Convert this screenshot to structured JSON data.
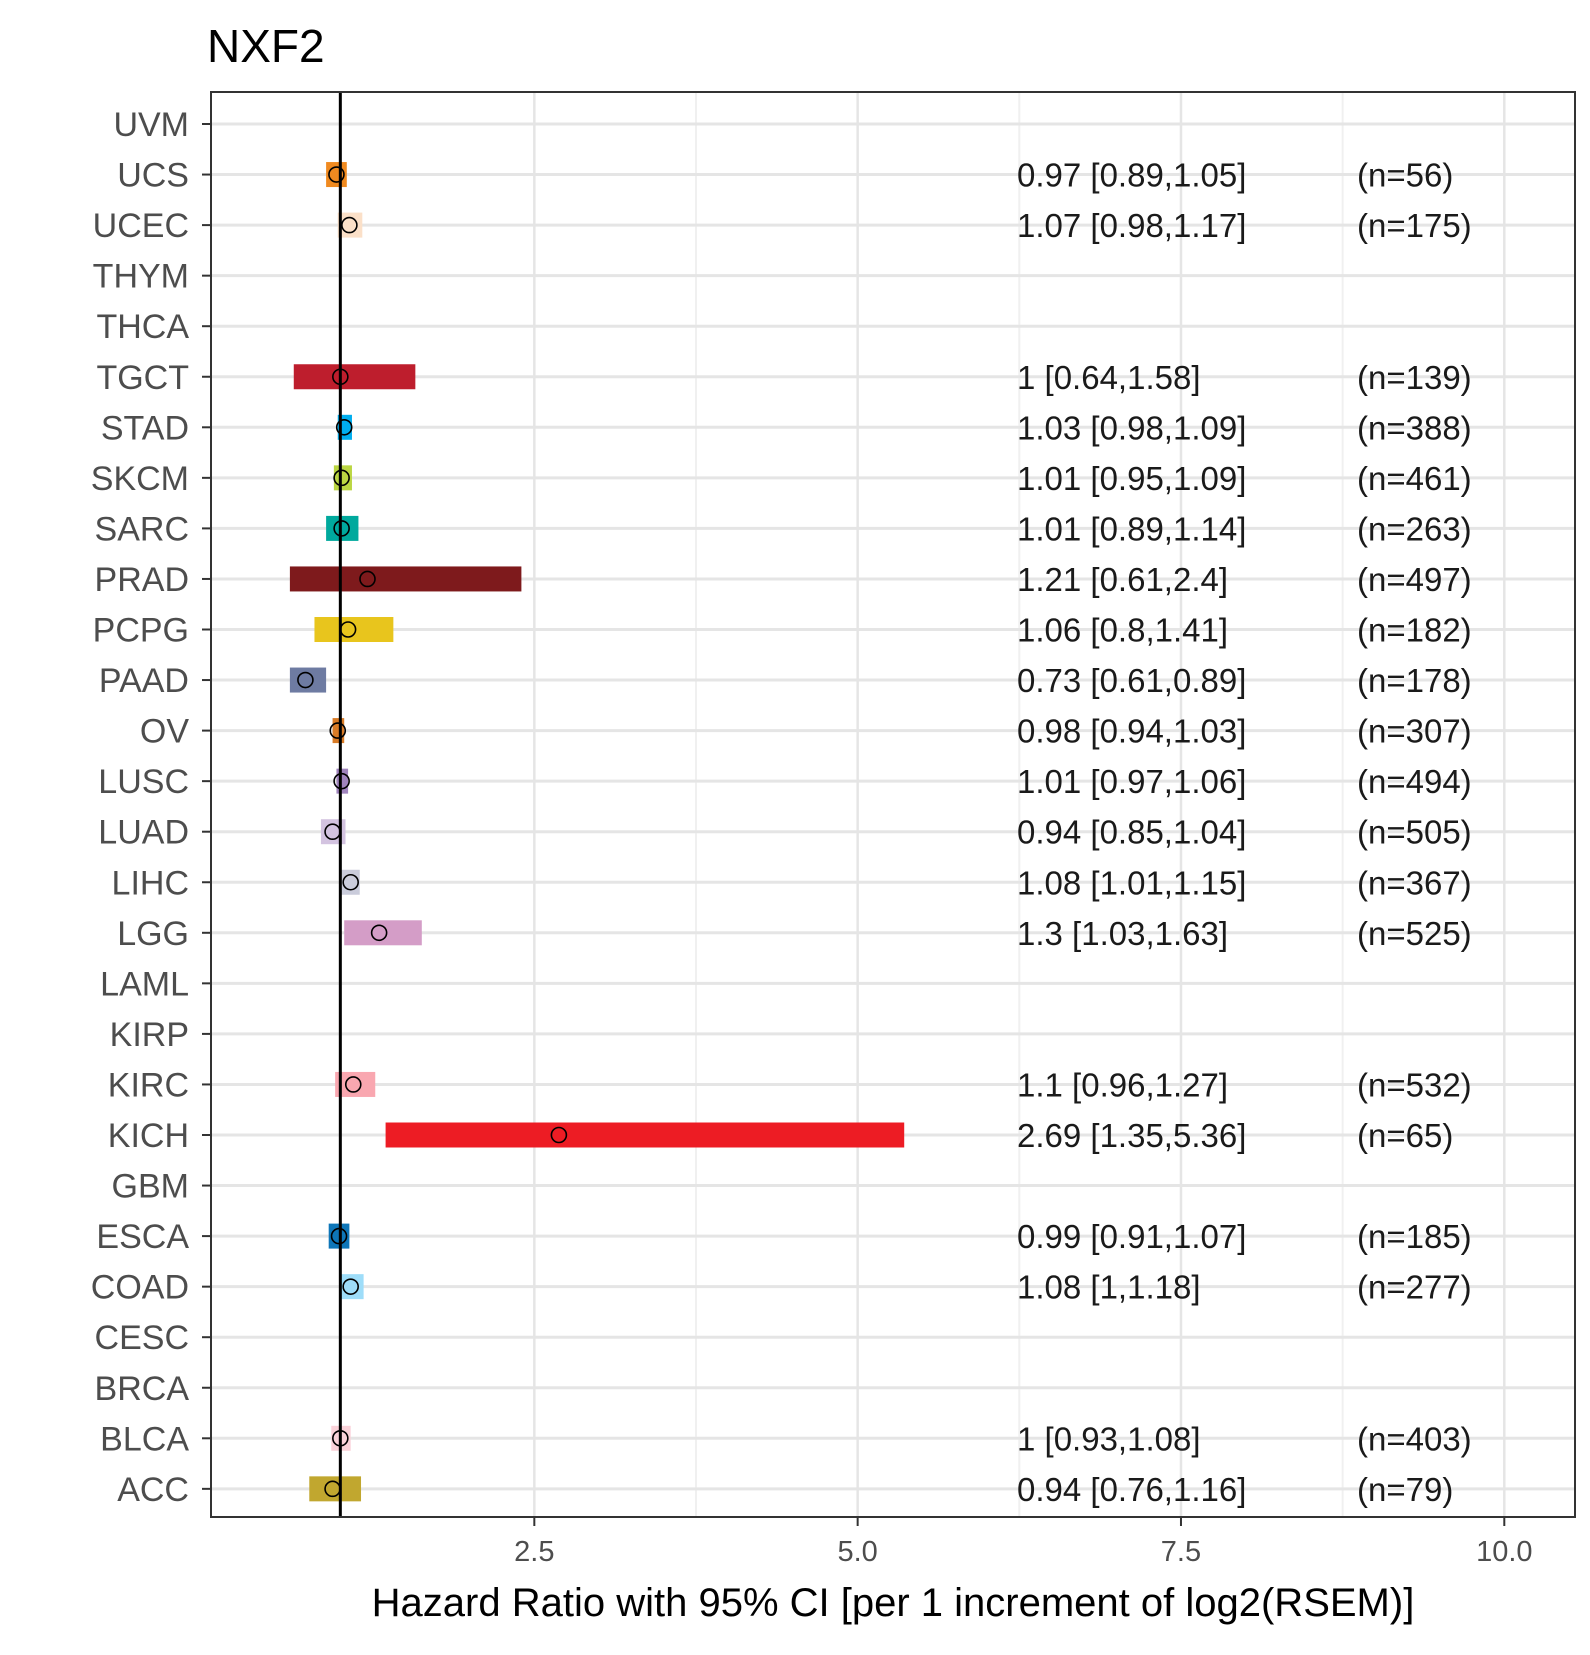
{
  "chart_data": {
    "type": "forest",
    "title": "NXF2",
    "xlabel": "Hazard Ratio with 95% CI [per 1 increment of log2(RSEM)]",
    "ylabel": "",
    "xlim": [
      0.0,
      10.6
    ],
    "reference_line": 1,
    "x_ticks": [
      2.5,
      5.0,
      7.5,
      10.0
    ],
    "x_tick_labels": [
      "2.5",
      "5.0",
      "7.5",
      "10.0"
    ],
    "x_minor_gridlines": [
      3.75,
      6.25,
      8.75
    ],
    "grid": true,
    "categories": [
      "UVM",
      "UCS",
      "UCEC",
      "THYM",
      "THCA",
      "TGCT",
      "STAD",
      "SKCM",
      "SARC",
      "PRAD",
      "PCPG",
      "PAAD",
      "OV",
      "LUSC",
      "LUAD",
      "LIHC",
      "LGG",
      "LAML",
      "KIRP",
      "KIRC",
      "KICH",
      "GBM",
      "ESCA",
      "COAD",
      "CESC",
      "BRCA",
      "BLCA",
      "ACC"
    ],
    "rows": [
      {
        "cancer": "UVM",
        "hr": null,
        "lower": null,
        "upper": null,
        "color": null,
        "label": "",
        "n": ""
      },
      {
        "cancer": "UCS",
        "hr": 0.97,
        "lower": 0.89,
        "upper": 1.05,
        "color": "#F08A20",
        "label": "0.97 [0.89,1.05]",
        "n": "(n=56)"
      },
      {
        "cancer": "UCEC",
        "hr": 1.07,
        "lower": 0.98,
        "upper": 1.17,
        "color": "#FBE0C8",
        "label": "1.07 [0.98,1.17]",
        "n": "(n=175)"
      },
      {
        "cancer": "THYM",
        "hr": null,
        "lower": null,
        "upper": null,
        "color": null,
        "label": "",
        "n": ""
      },
      {
        "cancer": "THCA",
        "hr": null,
        "lower": null,
        "upper": null,
        "color": null,
        "label": "",
        "n": ""
      },
      {
        "cancer": "TGCT",
        "hr": 1.0,
        "lower": 0.64,
        "upper": 1.58,
        "color": "#BE1E2D",
        "label": "1 [0.64,1.58]",
        "n": "(n=139)"
      },
      {
        "cancer": "STAD",
        "hr": 1.03,
        "lower": 0.98,
        "upper": 1.09,
        "color": "#00AEEF",
        "label": "1.03 [0.98,1.09]",
        "n": "(n=388)"
      },
      {
        "cancer": "SKCM",
        "hr": 1.01,
        "lower": 0.95,
        "upper": 1.09,
        "color": "#BBD642",
        "label": "1.01 [0.95,1.09]",
        "n": "(n=461)"
      },
      {
        "cancer": "SARC",
        "hr": 1.01,
        "lower": 0.89,
        "upper": 1.14,
        "color": "#00A99D",
        "label": "1.01 [0.89,1.14]",
        "n": "(n=263)"
      },
      {
        "cancer": "PRAD",
        "hr": 1.21,
        "lower": 0.61,
        "upper": 2.4,
        "color": "#7E1A1C",
        "label": "1.21 [0.61,2.4]",
        "n": "(n=497)"
      },
      {
        "cancer": "PCPG",
        "hr": 1.06,
        "lower": 0.8,
        "upper": 1.41,
        "color": "#E8C51D",
        "label": "1.06 [0.8,1.41]",
        "n": "(n=182)"
      },
      {
        "cancer": "PAAD",
        "hr": 0.73,
        "lower": 0.61,
        "upper": 0.89,
        "color": "#6E7BA2",
        "label": "0.73 [0.61,0.89]",
        "n": "(n=178)"
      },
      {
        "cancer": "OV",
        "hr": 0.98,
        "lower": 0.94,
        "upper": 1.03,
        "color": "#D97C27",
        "label": "0.98 [0.94,1.03]",
        "n": "(n=307)"
      },
      {
        "cancer": "LUSC",
        "hr": 1.01,
        "lower": 0.97,
        "upper": 1.06,
        "color": "#A084BD",
        "label": "1.01 [0.97,1.06]",
        "n": "(n=494)"
      },
      {
        "cancer": "LUAD",
        "hr": 0.94,
        "lower": 0.85,
        "upper": 1.04,
        "color": "#D3C3E0",
        "label": "0.94 [0.85,1.04]",
        "n": "(n=505)"
      },
      {
        "cancer": "LIHC",
        "hr": 1.08,
        "lower": 1.01,
        "upper": 1.15,
        "color": "#CACCDB",
        "label": "1.08 [1.01,1.15]",
        "n": "(n=367)"
      },
      {
        "cancer": "LGG",
        "hr": 1.3,
        "lower": 1.03,
        "upper": 1.63,
        "color": "#D49DC7",
        "label": "1.3 [1.03,1.63]",
        "n": "(n=525)"
      },
      {
        "cancer": "LAML",
        "hr": null,
        "lower": null,
        "upper": null,
        "color": null,
        "label": "",
        "n": ""
      },
      {
        "cancer": "KIRP",
        "hr": null,
        "lower": null,
        "upper": null,
        "color": null,
        "label": "",
        "n": ""
      },
      {
        "cancer": "KIRC",
        "hr": 1.1,
        "lower": 0.96,
        "upper": 1.27,
        "color": "#F9A7B0",
        "label": "1.1 [0.96,1.27]",
        "n": "(n=532)"
      },
      {
        "cancer": "KICH",
        "hr": 2.69,
        "lower": 1.35,
        "upper": 5.36,
        "color": "#ED1C24",
        "label": "2.69 [1.35,5.36]",
        "n": "(n=65)"
      },
      {
        "cancer": "GBM",
        "hr": null,
        "lower": null,
        "upper": null,
        "color": null,
        "label": "",
        "n": ""
      },
      {
        "cancer": "ESCA",
        "hr": 0.99,
        "lower": 0.91,
        "upper": 1.07,
        "color": "#0E76B8",
        "label": "0.99 [0.91,1.07]",
        "n": "(n=185)"
      },
      {
        "cancer": "COAD",
        "hr": 1.08,
        "lower": 1.0,
        "upper": 1.18,
        "color": "#9EDDF9",
        "label": "1.08 [1,1.18]",
        "n": "(n=277)"
      },
      {
        "cancer": "CESC",
        "hr": null,
        "lower": null,
        "upper": null,
        "color": null,
        "label": "",
        "n": ""
      },
      {
        "cancer": "BRCA",
        "hr": null,
        "lower": null,
        "upper": null,
        "color": null,
        "label": "",
        "n": ""
      },
      {
        "cancer": "BLCA",
        "hr": 1.0,
        "lower": 0.93,
        "upper": 1.08,
        "color": "#FAD2D9",
        "label": "1 [0.93,1.08]",
        "n": "(n=403)"
      },
      {
        "cancer": "ACC",
        "hr": 0.94,
        "lower": 0.76,
        "upper": 1.16,
        "color": "#C1A72F",
        "label": "0.94 [0.76,1.16]",
        "n": "(n=79)"
      }
    ]
  }
}
